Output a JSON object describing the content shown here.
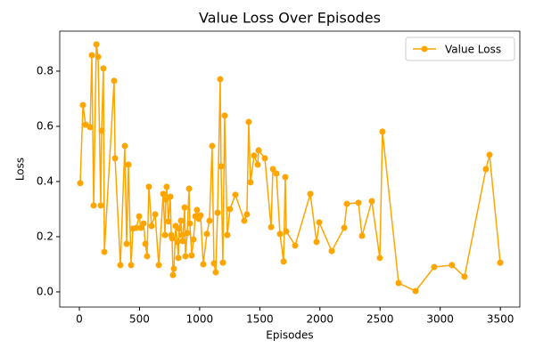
{
  "chart_data": {
    "type": "line",
    "title": "Value Loss Over Episodes",
    "x_label": "Episodes",
    "y_label": "Loss",
    "xlim": [
      -163,
      3662
    ],
    "ylim": [
      -0.055,
      0.945
    ],
    "xticks": [
      0,
      500,
      1000,
      1500,
      2000,
      2500,
      3000,
      3500
    ],
    "yticks": [
      {
        "value": 0,
        "label": "0.0"
      },
      {
        "value": 0.2,
        "label": "0.2"
      },
      {
        "value": 0.4,
        "label": "0.4"
      },
      {
        "value": 0.6,
        "label": "0.6"
      },
      {
        "value": 0.8,
        "label": "0.8"
      }
    ],
    "legend": "upper right",
    "series": [
      {
        "name": "Value Loss",
        "color": "#ffa500",
        "x": [
          7,
          30,
          52,
          89,
          104,
          119,
          141,
          156,
          178,
          185,
          200,
          208,
          289,
          297,
          341,
          378,
          393,
          408,
          430,
          445,
          474,
          497,
          512,
          534,
          549,
          563,
          578,
          600,
          630,
          660,
          697,
          712,
          719,
          726,
          741,
          756,
          764,
          771,
          778,
          786,
          801,
          815,
          823,
          830,
          845,
          852,
          860,
          875,
          882,
          897,
          912,
          919,
          934,
          949,
          964,
          978,
          993,
          1008,
          1030,
          1060,
          1082,
          1104,
          1119,
          1134,
          1149,
          1171,
          1178,
          1193,
          1208,
          1230,
          1252,
          1297,
          1371,
          1393,
          1408,
          1423,
          1453,
          1483,
          1490,
          1542,
          1594,
          1609,
          1638,
          1668,
          1698,
          1712,
          1720,
          1794,
          1920,
          1972,
          1994,
          2098,
          2202,
          2224,
          2320,
          2350,
          2431,
          2498,
          2520,
          2654,
          2795,
          2950,
          3098,
          3202,
          3380,
          3410,
          3499
        ],
        "values": [
          0.394,
          0.677,
          0.606,
          0.597,
          0.858,
          0.313,
          0.897,
          0.852,
          0.313,
          0.584,
          0.81,
          0.145,
          0.765,
          0.484,
          0.097,
          0.529,
          0.174,
          0.461,
          0.097,
          0.229,
          0.232,
          0.274,
          0.232,
          0.248,
          0.174,
          0.129,
          0.381,
          0.239,
          0.281,
          0.097,
          0.355,
          0.206,
          0.335,
          0.381,
          0.255,
          0.345,
          0.206,
          0.194,
          0.061,
          0.084,
          0.239,
          0.181,
          0.123,
          0.229,
          0.258,
          0.206,
          0.184,
          0.306,
          0.129,
          0.213,
          0.374,
          0.248,
          0.132,
          0.19,
          0.274,
          0.297,
          0.265,
          0.277,
          0.1,
          0.21,
          0.258,
          0.529,
          0.103,
          0.071,
          0.287,
          0.771,
          0.455,
          0.106,
          0.639,
          0.206,
          0.3,
          0.352,
          0.258,
          0.281,
          0.616,
          0.397,
          0.494,
          0.461,
          0.513,
          0.484,
          0.235,
          0.445,
          0.429,
          0.21,
          0.11,
          0.416,
          0.219,
          0.168,
          0.355,
          0.181,
          0.252,
          0.148,
          0.232,
          0.319,
          0.323,
          0.203,
          0.329,
          0.123,
          0.581,
          0.032,
          0.003,
          0.09,
          0.097,
          0.055,
          0.445,
          0.497,
          0.106
        ]
      }
    ]
  }
}
